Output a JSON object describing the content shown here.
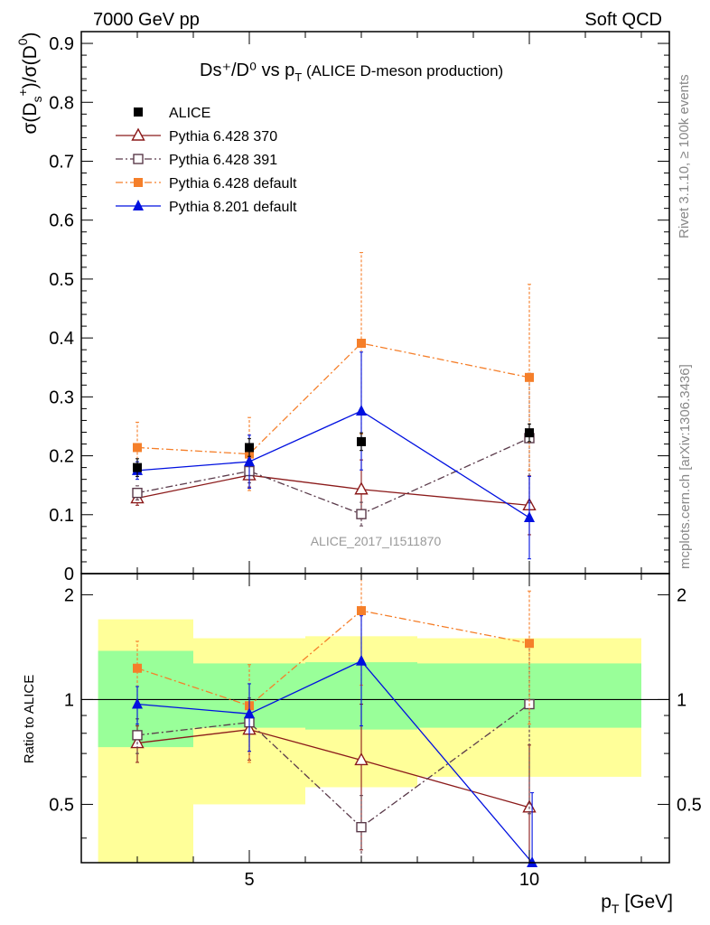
{
  "header": {
    "left": "7000 GeV pp",
    "right": "Soft QCD"
  },
  "side_labels": {
    "rivet": "Rivet 3.1.10, ≥ 100k events",
    "mcplots": "mcplots.cern.ch [arXiv:1306.3436]"
  },
  "colors": {
    "alice": "#000000",
    "p370": "#8b1a1a",
    "p391": "#5a3a4a",
    "p6def": "#f57f2a",
    "p8def": "#0010e0",
    "band_inner": "#99ff99",
    "band_outer": "#ffff99"
  },
  "chart_data": [
    {
      "type": "scatter",
      "title": "Ds⁺/D⁰ vs p_T (ALICE D-meson production)",
      "title_main": "Ds⁺/D⁰ vs p",
      "title_sub": "T",
      "title_note": "(ALICE D-meson production)",
      "ylabel": "σ(Dₛ⁺)/σ(D⁰)",
      "xlabel": "p_T [GeV]",
      "xlim": [
        2,
        12.5
      ],
      "ylim": [
        0,
        0.92
      ],
      "yticks": [
        0,
        0.1,
        0.2,
        0.3,
        0.4,
        0.5,
        0.6,
        0.7,
        0.8,
        0.9
      ],
      "ytick_labels": [
        "0",
        "0.1",
        "0.2",
        "0.3",
        "0.4",
        "0.5",
        "0.6",
        "0.7",
        "0.8",
        "0.9"
      ],
      "grid": false,
      "legend_position": "top-left",
      "watermark": "ALICE_2017_I1511870",
      "series": [
        {
          "name": "ALICE",
          "key": "alice",
          "marker": "square",
          "line": "none",
          "x": [
            3,
            5,
            7,
            10
          ],
          "y": [
            0.18,
            0.214,
            0.224,
            0.239
          ],
          "err": [
            0.015,
            0.015,
            0.015,
            0.015
          ]
        },
        {
          "name": "Pythia 6.428 370",
          "key": "p370",
          "marker": "triangle-open",
          "line": "solid",
          "x": [
            3,
            5,
            7,
            10
          ],
          "y": [
            0.128,
            0.167,
            0.143,
            0.116
          ],
          "err": [
            0.012,
            0.02,
            0.05,
            0.05
          ]
        },
        {
          "name": "Pythia 6.428 391",
          "key": "p391",
          "marker": "square-open",
          "line": "dashdot",
          "x": [
            3,
            5,
            7,
            10
          ],
          "y": [
            0.137,
            0.174,
            0.101,
            0.23
          ],
          "err": [
            0.012,
            0.02,
            0.02,
            0.11
          ]
        },
        {
          "name": "Pythia 6.428 default",
          "key": "p6def",
          "marker": "square",
          "line": "dashdot",
          "x": [
            3,
            5,
            7,
            10
          ],
          "y": [
            0.214,
            0.203,
            0.391,
            0.333
          ],
          "err": [
            0.043,
            0.062,
            0.154,
            0.158
          ]
        },
        {
          "name": "Pythia 8.201 default",
          "key": "p8def",
          "marker": "triangle",
          "line": "solid",
          "x": [
            3,
            5,
            7,
            10
          ],
          "y": [
            0.175,
            0.19,
            0.276,
            0.095
          ],
          "err": [
            0.015,
            0.045,
            0.1,
            0.07
          ]
        }
      ]
    },
    {
      "type": "scatter",
      "ylabel": "Ratio to ALICE",
      "xlabel": "p_T [GeV]",
      "xlim": [
        2,
        12.5
      ],
      "ylim": [
        0.34,
        2.3
      ],
      "yscale": "log",
      "xticks": [
        5,
        10
      ],
      "xtick_labels": [
        "5",
        "10"
      ],
      "yticks": [
        0.5,
        1,
        2
      ],
      "ytick_labels": [
        "0.5",
        "1",
        "2"
      ],
      "grid": false,
      "reference_line": 1,
      "bands": [
        {
          "x0": 2,
          "x1": 4,
          "inner": [
            0.73,
            1.38
          ],
          "outer": [
            0.28,
            1.7
          ]
        },
        {
          "x0": 4,
          "x1": 6,
          "inner": [
            0.83,
            1.27
          ],
          "outer": [
            0.5,
            1.5
          ]
        },
        {
          "x0": 6,
          "x1": 8,
          "inner": [
            0.82,
            1.28
          ],
          "outer": [
            0.56,
            1.52
          ]
        },
        {
          "x0": 8,
          "x1": 12,
          "inner": [
            0.83,
            1.27
          ],
          "outer": [
            0.6,
            1.5
          ]
        }
      ],
      "series": [
        {
          "name": "Pythia 6.428 370",
          "key": "p370",
          "marker": "triangle-open",
          "line": "solid",
          "x": [
            3,
            5,
            7,
            10
          ],
          "y": [
            0.75,
            0.82,
            0.67,
            0.49
          ],
          "err": [
            0.09,
            0.15,
            0.3,
            0.25
          ]
        },
        {
          "name": "Pythia 6.428 391",
          "key": "p391",
          "marker": "square-open",
          "line": "dashdot",
          "x": [
            3,
            5,
            7,
            10
          ],
          "y": [
            0.79,
            0.86,
            0.43,
            0.97
          ],
          "err": [
            0.09,
            0.15,
            0.1,
            0.5
          ]
        },
        {
          "name": "Pythia 6.428 default",
          "key": "p6def",
          "marker": "square",
          "line": "dashdot",
          "x": [
            3,
            5,
            7,
            10
          ],
          "y": [
            1.23,
            0.96,
            1.8,
            1.45
          ],
          "err": [
            0.24,
            0.3,
            0.7,
            0.6
          ]
        },
        {
          "name": "Pythia 8.201 default",
          "key": "p8def",
          "marker": "triangle",
          "line": "solid",
          "x": [
            3,
            5,
            7,
            10.05
          ],
          "y": [
            0.97,
            0.91,
            1.29,
            0.34
          ],
          "err": [
            0.12,
            0.2,
            0.45,
            0.2
          ]
        }
      ]
    }
  ]
}
